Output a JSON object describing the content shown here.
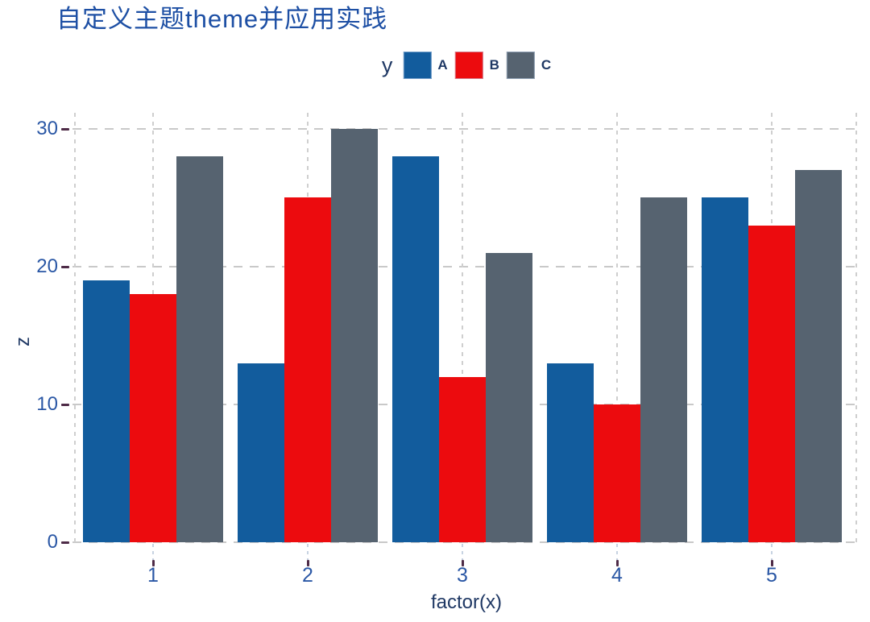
{
  "title": "自定义主题theme并应用实践",
  "legend": {
    "axis_label": "y",
    "items": [
      {
        "label": "A",
        "color": "#125C9D"
      },
      {
        "label": "B",
        "color": "#EC0B0E"
      },
      {
        "label": "C",
        "color": "#566370"
      }
    ]
  },
  "chart_data": {
    "type": "bar",
    "title": "自定义主题theme并应用实践",
    "xlabel": "factor(x)",
    "ylabel": "z",
    "categories": [
      "1",
      "2",
      "3",
      "4",
      "5"
    ],
    "series": [
      {
        "name": "A",
        "color": "#125C9D",
        "values": [
          19,
          13,
          28,
          13,
          25
        ]
      },
      {
        "name": "B",
        "color": "#EC0B0E",
        "values": [
          18,
          25,
          12,
          10,
          23
        ]
      },
      {
        "name": "C",
        "color": "#566370",
        "values": [
          28,
          30,
          21,
          25,
          27
        ]
      }
    ],
    "yticks": [
      0,
      10,
      20,
      30
    ],
    "ylim": [
      0,
      31
    ],
    "grid": "dashed",
    "legend_position": "top-center"
  },
  "colors": {
    "title_text": "#1D4FA4",
    "tick_label_text": "#2A57A5",
    "axis_title_text": "#1F3864",
    "gridline": "#C9C9C9",
    "tick_mark": "#4E2B47",
    "background": "#FFFFFF"
  }
}
